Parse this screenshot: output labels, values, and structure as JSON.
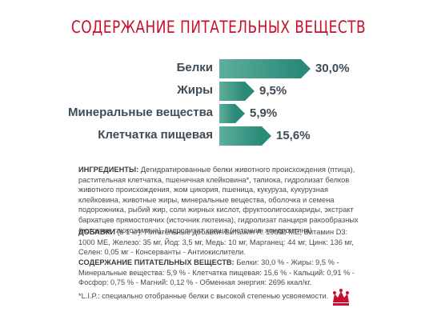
{
  "title": "СОДЕРЖАНИЕ ПИТАТЕЛЬНЫХ ВЕЩЕСТВ",
  "nutrients": [
    {
      "label": "Белки",
      "value": "30,0%",
      "percent": 30.0
    },
    {
      "label": "Жиры",
      "value": "9,5%",
      "percent": 9.5
    },
    {
      "label": "Минеральные вещества",
      "value": "5,9%",
      "percent": 5.9
    },
    {
      "label": "Клетчатка пищевая",
      "value": "15,6%",
      "percent": 15.6
    }
  ],
  "ingredients": {
    "heading": "ИНГРЕДИЕНТЫ:",
    "text": " Дегидратированные белки животного происхождения (птица), растительная клетчатка, пшеничная клейковина*, тапиока, гидролизат белков животного происхождения, жом цикория, пшеница, кукуруза, кукурузная клейковина, животные жиры, минеральные вещества, оболочка и семена подорожника, рыбий жир, соли жирных кислот, фруктоолигосахариды, экстракт бархатцев прямостоячих (источник лютеина), гидролизат панциря ракообразных (источник глюкозамина), гидролизат хряща (источник хондроитина)"
  },
  "additives": {
    "heading": "ДОБАВКИ",
    "text": " (в 1 кг): Питательные добавки: Витамин А: 19000 МЕ, Витамин D3: 1000 МЕ, Железо: 35 мг, Йод: 3,5 мг, Медь: 10 мг, Марганец: 44 мг, Цинк: 136 мг, Селен: 0,05 мг - Консерванты - Антиокислители."
  },
  "composition": {
    "heading": "СОДЕРЖАНИЕ ПИТАТЕЛЬНЫХ ВЕЩЕСТВ:",
    "text": " Белки: 30,0 % - Жиры: 9,5 % - Минеральные вещества: 5,9 % - Клетчатка пищевая: 15,6 % - Кальций: 0,91 % - Фосфор: 0,75 % - Магний: 0,12 % - Обменная энергия: 2696 ккал/кг."
  },
  "footnote": "*L.I.P.: специально отобранные белки с высокой степенью усвояемости.",
  "colors": {
    "title": "#c8102e",
    "bar": "#2a8a78",
    "logo": "#c8102e"
  },
  "logo_icon": "royal-crown-icon"
}
